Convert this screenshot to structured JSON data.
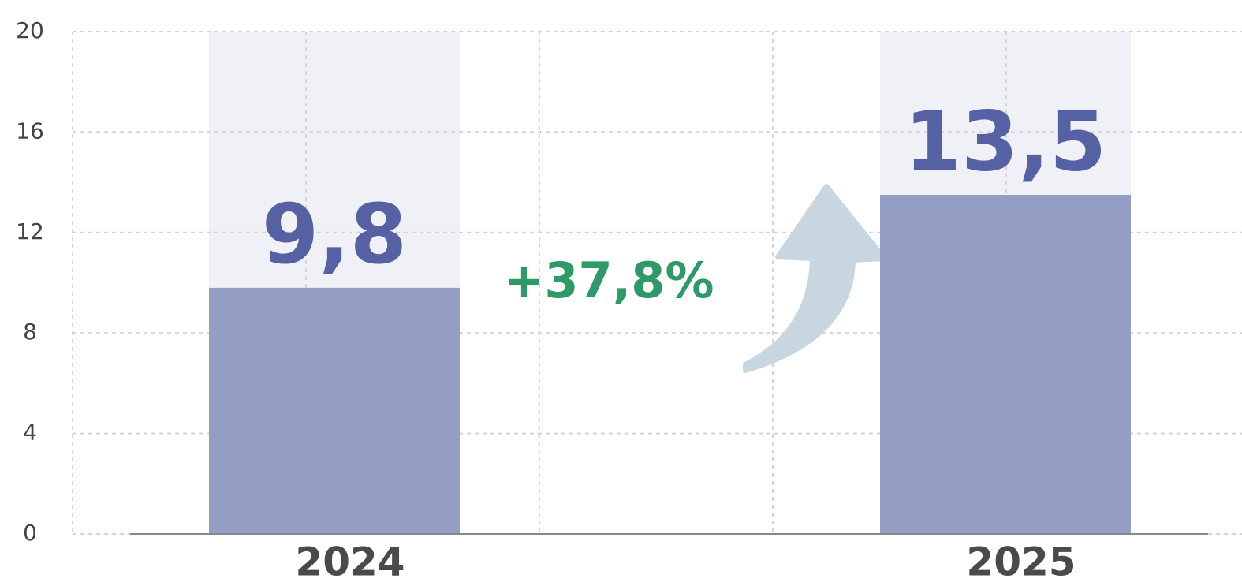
{
  "chart_data": {
    "type": "bar",
    "categories": [
      "2024",
      "2025"
    ],
    "values": [
      9.8,
      13.5
    ],
    "value_labels": [
      "9,8",
      "13,5"
    ],
    "color": "#949dc4",
    "annotation": "+37,8%",
    "ylim": [
      0,
      20
    ],
    "yticks": [
      0,
      4,
      8,
      12,
      16,
      20
    ],
    "grid": true
  }
}
